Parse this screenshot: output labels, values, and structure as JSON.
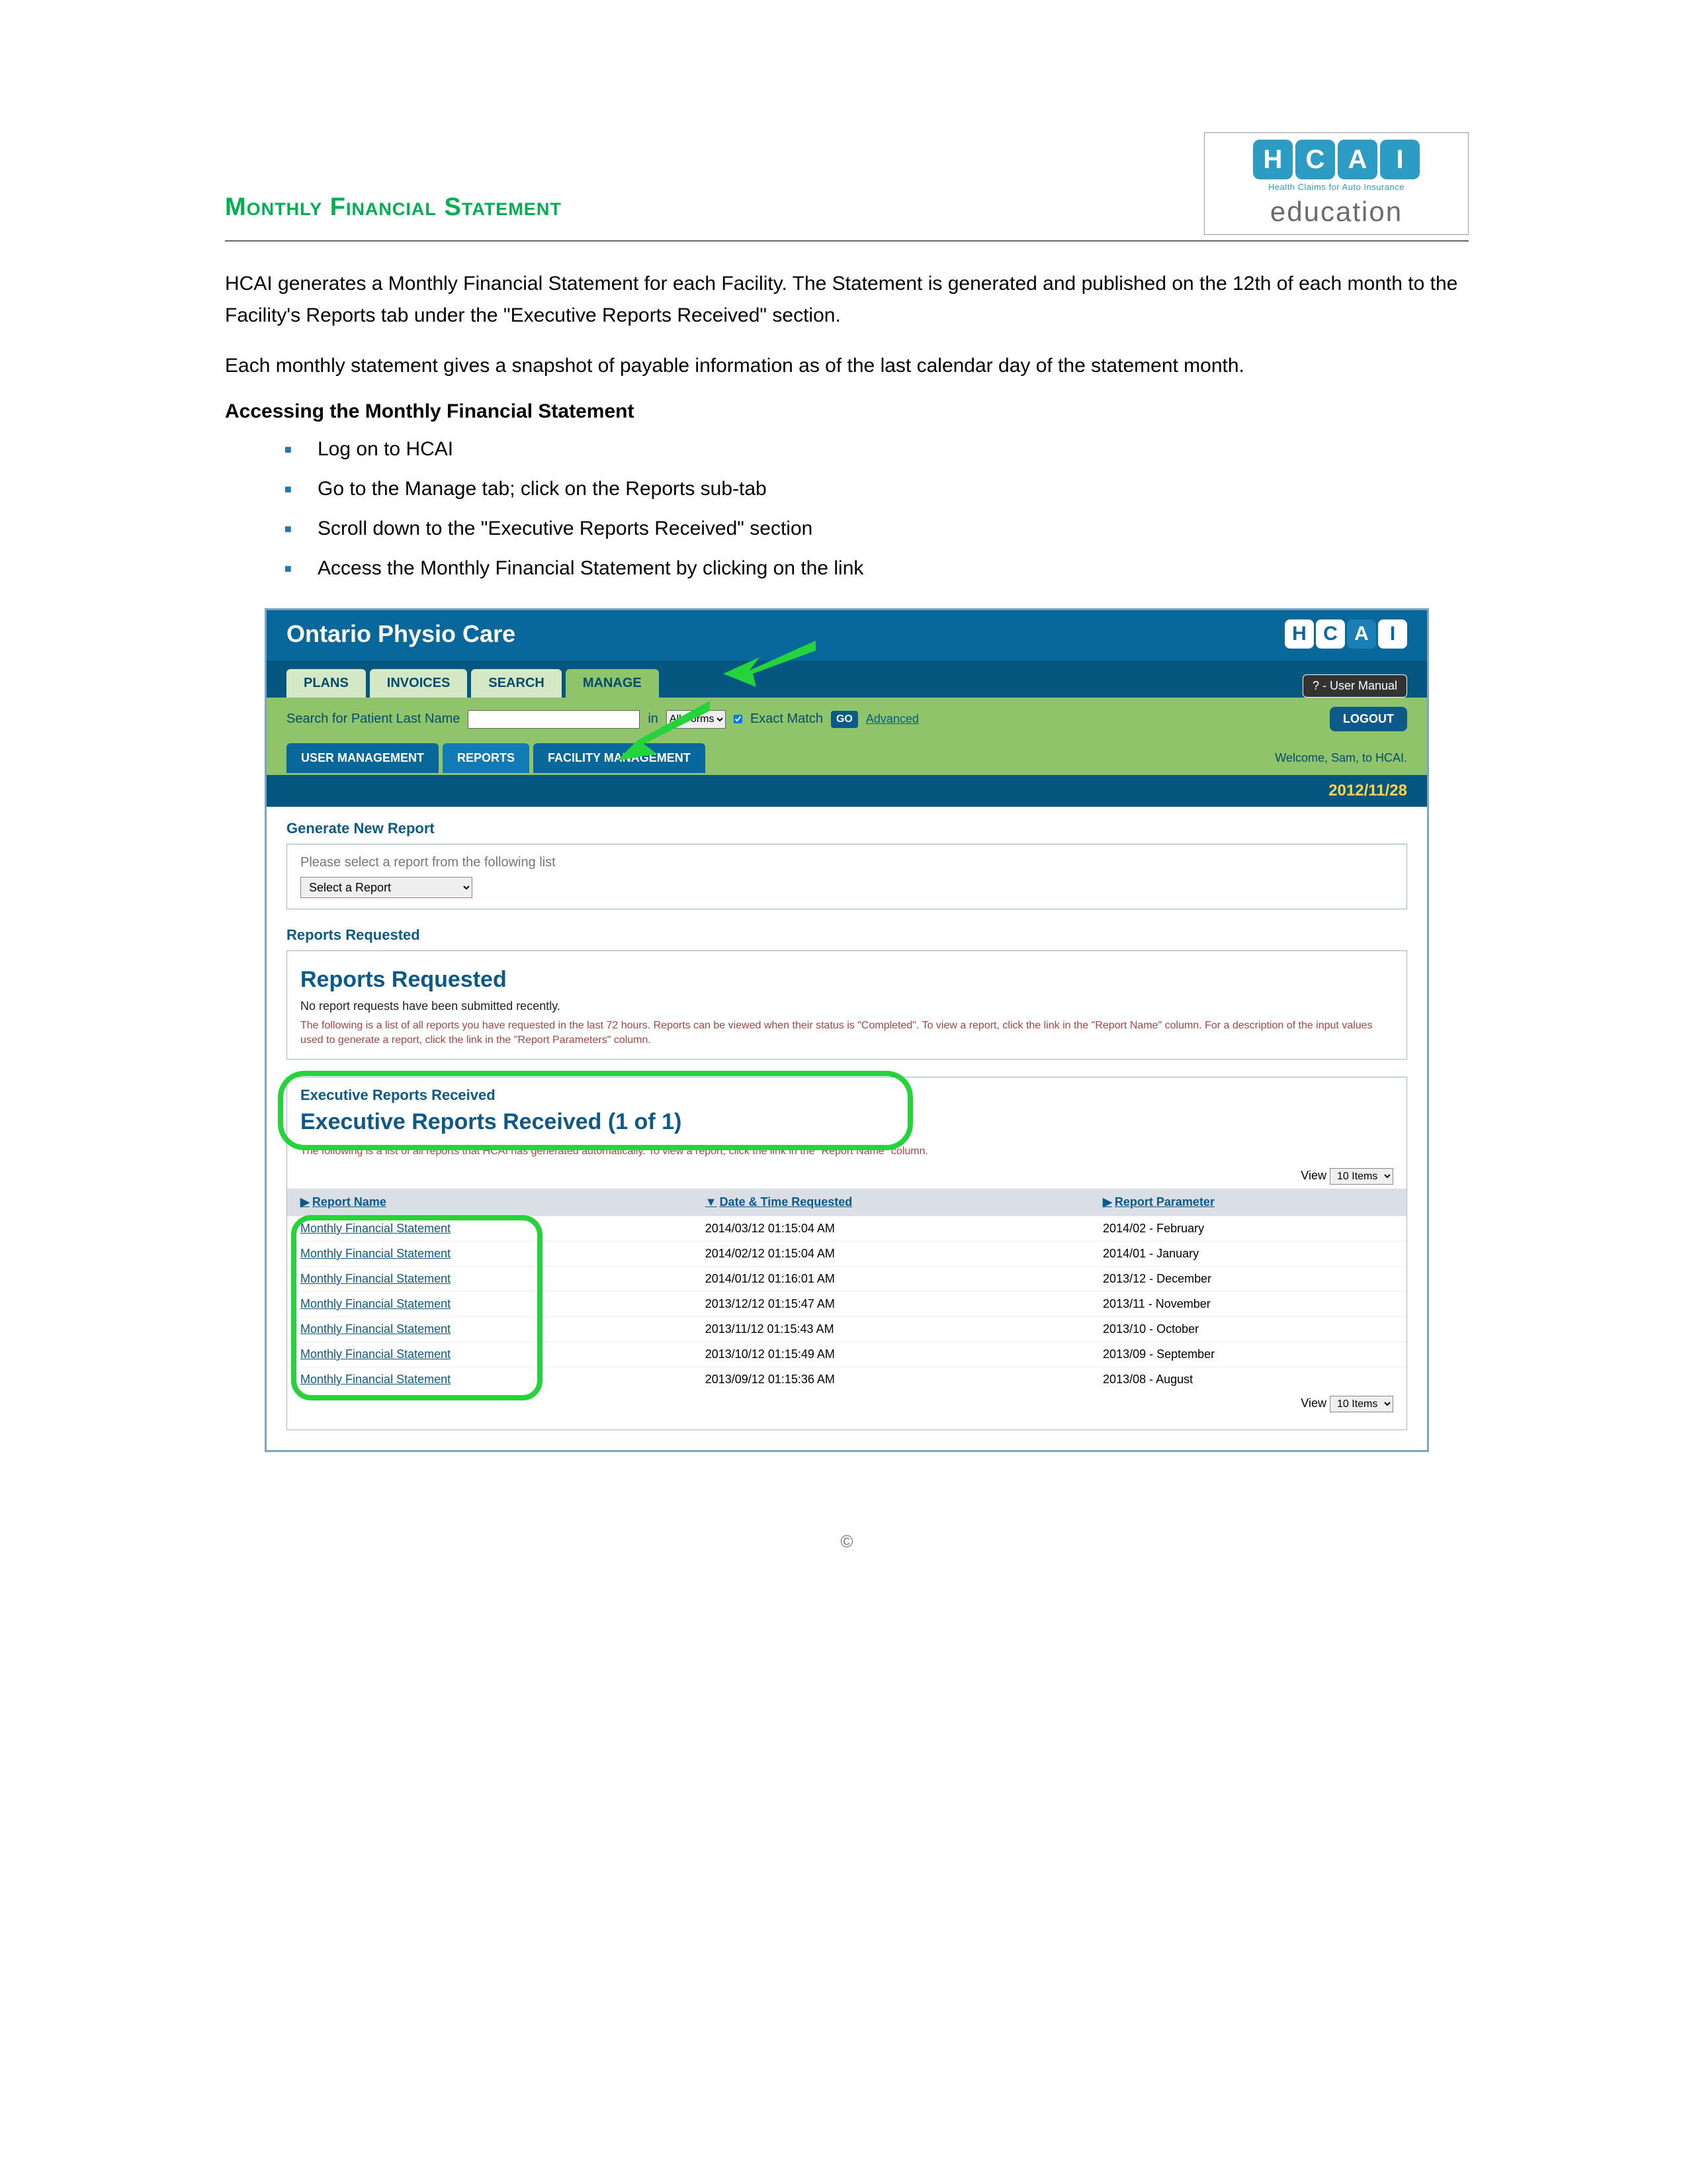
{
  "doc": {
    "title": "Monthly Financial Statement",
    "logo": {
      "letters": [
        "H",
        "C",
        "A",
        "I"
      ],
      "sub": "Health Claims for Auto Insurance",
      "edu": "education"
    },
    "p1": "HCAI generates a Monthly Financial Statement for each Facility. The Statement is generated and published on the 12th of each month to the Facility's Reports tab under the \"Executive Reports Received\" section.",
    "p2": "Each monthly statement gives a snapshot of payable information as of the last calendar day of the statement month.",
    "heading": "Accessing the Monthly Financial Statement",
    "b1": "Log on to HCAI",
    "b2": "Go to the Manage tab; click on the Reports sub-tab",
    "b3": "Scroll down to the \"Executive Reports Received\" section",
    "b4": "Access the Monthly Financial Statement by clicking on the link"
  },
  "app": {
    "title": "Ontario Physio Care",
    "tabs": {
      "plans": "PLANS",
      "invoices": "INVOICES",
      "search": "SEARCH",
      "manage": "MANAGE"
    },
    "manual": "? - User Manual",
    "searchbar": {
      "label": "Search for Patient Last Name",
      "in": "in",
      "forms": "All Forms",
      "exact_label": "Exact Match",
      "exact_checked": true,
      "go": "GO",
      "advanced": "Advanced",
      "logout": "LOGOUT"
    },
    "subtabs": {
      "user": "USER MANAGEMENT",
      "reports": "REPORTS",
      "facility": "FACILITY MANAGEMENT"
    },
    "welcome": "Welcome, Sam, to HCAI.",
    "date": "2012/11/28",
    "gen": {
      "head": "Generate New Report",
      "instr": "Please select a report from the following list",
      "select": "Select a Report"
    },
    "req": {
      "head": "Reports Requested",
      "big": "Reports Requested",
      "none": "No report requests have been submitted recently.",
      "note": "The following is a list of all reports you have requested in the last 72 hours. Reports can be viewed when their status is \"Completed\". To view a report, click the link in the \"Report Name\" column. For a description of the input values used to generate a report, click the link in the \"Report Parameters\" column."
    },
    "exec": {
      "head": "Executive Reports Received",
      "big": "Executive Reports Received (1 of 1)",
      "note": "The following is a list of all reports that HCAI has generated automatically. To view a report, click the link in the \"Report Name\" column.",
      "view_label": "View",
      "view_value": "10 Items",
      "cols": {
        "name": "Report Name",
        "date": "Date & Time Requested",
        "param": "Report Parameter"
      },
      "rows": [
        {
          "name": "Monthly Financial Statement",
          "date": "2014/03/12 01:15:04 AM",
          "param": "2014/02 - February"
        },
        {
          "name": "Monthly Financial Statement",
          "date": "2014/02/12 01:15:04 AM",
          "param": "2014/01 - January"
        },
        {
          "name": "Monthly Financial Statement",
          "date": "2014/01/12 01:16:01 AM",
          "param": "2013/12 - December"
        },
        {
          "name": "Monthly Financial Statement",
          "date": "2013/12/12 01:15:47 AM",
          "param": "2013/11 - November"
        },
        {
          "name": "Monthly Financial Statement",
          "date": "2013/11/12 01:15:43 AM",
          "param": "2013/10 - October"
        },
        {
          "name": "Monthly Financial Statement",
          "date": "2013/10/12 01:15:49 AM",
          "param": "2013/09 - September"
        },
        {
          "name": "Monthly Financial Statement",
          "date": "2013/09/12 01:15:36 AM",
          "param": "2013/08 - August"
        }
      ]
    }
  },
  "annotations": {
    "arrow_color": "#25d43a",
    "oval_color": "#25d43a"
  },
  "footer": "©"
}
